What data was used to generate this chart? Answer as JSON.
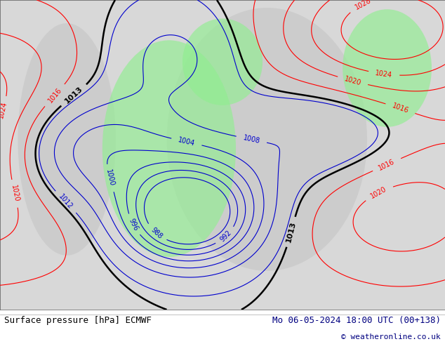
{
  "fig_width": 6.34,
  "fig_height": 4.9,
  "dpi": 100,
  "background_color": "#ffffff",
  "map_bg_color": "#d8d8d8",
  "footer_left": "Surface pressure [hPa] ECMWF",
  "footer_right": "Mo 06-05-2024 18:00 UTC (00+138)",
  "footer_copyright": "© weatheronline.co.uk",
  "footer_color": "#000080",
  "footer_fontsize": 9,
  "copyright_fontsize": 8,
  "green_region_color": "#90ee90",
  "contour_blue_color": "#0000cd",
  "contour_red_color": "#ff0000",
  "contour_black_color": "#000000",
  "label_fontsize": 7
}
